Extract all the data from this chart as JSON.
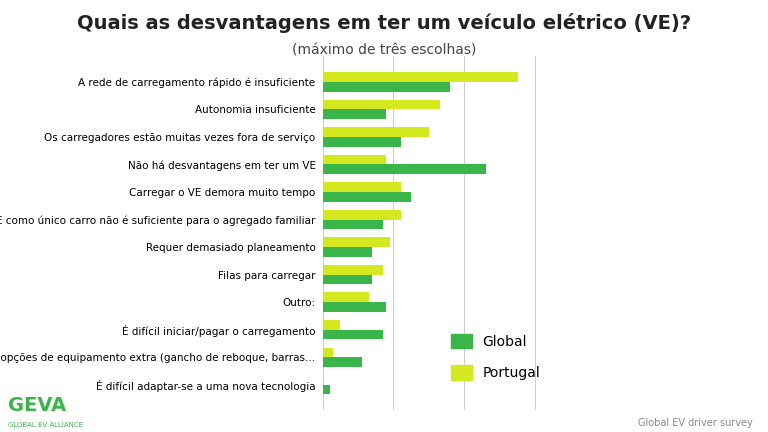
{
  "title": "Quais as desvantagens em ter um veículo elétrico (VE)?",
  "subtitle": "(máximo de três escolhas)",
  "categories": [
    "A rede de carregamento rápido é insuficiente",
    "Autonomia insuficiente",
    "Os carregadores estão muitas vezes fora de serviço",
    "Não há desvantagens em ter um VE",
    "Carregar o VE demora muito tempo",
    "Um VE como único carro não é suficiente para o agregado familiar",
    "Requer demasiado planeamento",
    "Filas para carregar",
    "Outro:",
    "É difícil iniciar/pagar o carregamento",
    "Sem opções de equipamento extra (gancho de reboque, barras...",
    "É difícil adaptar-se a uma nova tecnologia"
  ],
  "global": [
    36,
    18,
    22,
    46,
    25,
    17,
    14,
    14,
    18,
    17,
    11,
    2
  ],
  "portugal": [
    55,
    33,
    30,
    18,
    22,
    22,
    19,
    17,
    13,
    5,
    3,
    0
  ],
  "color_global": "#3ab54a",
  "color_portugal": "#d4e820",
  "legend_global": "Global",
  "legend_portugal": "Portugal",
  "footer": "Global EV driver survey",
  "xlim": [
    0,
    65
  ],
  "background_color": "#ffffff",
  "title_fontsize": 14,
  "subtitle_fontsize": 10,
  "bar_height": 0.35
}
